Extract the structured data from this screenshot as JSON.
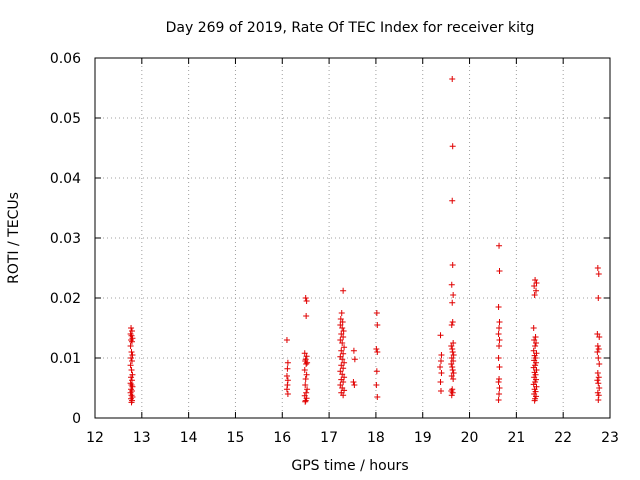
{
  "chart_data": {
    "type": "scatter",
    "title": "Day 269 of 2019, Rate Of TEC Index for receiver kitg",
    "xlabel": "GPS time / hours",
    "ylabel": "ROTI / TECUs",
    "xlim": [
      12,
      23
    ],
    "ylim": [
      0,
      0.06
    ],
    "xticks": [
      "12",
      "13",
      "14",
      "15",
      "16",
      "17",
      "18",
      "19",
      "20",
      "21",
      "22",
      "23"
    ],
    "yticks": [
      "0",
      "0.01",
      "0.02",
      "0.03",
      "0.04",
      "0.05",
      "0.06"
    ],
    "xtick_values": [
      12,
      13,
      14,
      15,
      16,
      17,
      18,
      19,
      20,
      21,
      22,
      23
    ],
    "ytick_values": [
      0,
      0.01,
      0.02,
      0.03,
      0.04,
      0.05,
      0.06
    ],
    "grid": true,
    "marker": "plus",
    "color": "#e00000",
    "series": [
      {
        "name": "ROTI",
        "points": [
          [
            12.77,
            0.015
          ],
          [
            12.79,
            0.0145
          ],
          [
            12.76,
            0.014
          ],
          [
            12.78,
            0.0137
          ],
          [
            12.8,
            0.0133
          ],
          [
            12.77,
            0.013
          ],
          [
            12.79,
            0.0127
          ],
          [
            12.76,
            0.012
          ],
          [
            12.78,
            0.011
          ],
          [
            12.8,
            0.0105
          ],
          [
            12.77,
            0.01
          ],
          [
            12.79,
            0.0095
          ],
          [
            12.76,
            0.0088
          ],
          [
            12.78,
            0.008
          ],
          [
            12.8,
            0.0072
          ],
          [
            12.77,
            0.0068
          ],
          [
            12.79,
            0.0063
          ],
          [
            12.76,
            0.0058
          ],
          [
            12.78,
            0.0055
          ],
          [
            12.8,
            0.0052
          ],
          [
            12.77,
            0.0048
          ],
          [
            12.79,
            0.0045
          ],
          [
            12.76,
            0.0042
          ],
          [
            12.78,
            0.0038
          ],
          [
            12.8,
            0.0035
          ],
          [
            12.77,
            0.0032
          ],
          [
            12.79,
            0.0029
          ],
          [
            12.78,
            0.0026
          ],
          [
            16.1,
            0.013
          ],
          [
            16.12,
            0.0092
          ],
          [
            16.11,
            0.0082
          ],
          [
            16.1,
            0.007
          ],
          [
            16.12,
            0.0063
          ],
          [
            16.11,
            0.0055
          ],
          [
            16.1,
            0.0048
          ],
          [
            16.12,
            0.004
          ],
          [
            16.5,
            0.02
          ],
          [
            16.52,
            0.0195
          ],
          [
            16.51,
            0.017
          ],
          [
            16.48,
            0.0108
          ],
          [
            16.52,
            0.0103
          ],
          [
            16.5,
            0.0098
          ],
          [
            16.49,
            0.0095
          ],
          [
            16.53,
            0.0092
          ],
          [
            16.51,
            0.009
          ],
          [
            16.48,
            0.008
          ],
          [
            16.52,
            0.0072
          ],
          [
            16.5,
            0.0065
          ],
          [
            16.49,
            0.0055
          ],
          [
            16.53,
            0.0048
          ],
          [
            16.51,
            0.0042
          ],
          [
            16.48,
            0.0037
          ],
          [
            16.52,
            0.0033
          ],
          [
            16.5,
            0.0029
          ],
          [
            16.49,
            0.0027
          ],
          [
            17.3,
            0.0212
          ],
          [
            17.27,
            0.0175
          ],
          [
            17.25,
            0.0165
          ],
          [
            17.29,
            0.016
          ],
          [
            17.24,
            0.0155
          ],
          [
            17.28,
            0.015
          ],
          [
            17.31,
            0.0145
          ],
          [
            17.26,
            0.014
          ],
          [
            17.3,
            0.0135
          ],
          [
            17.24,
            0.013
          ],
          [
            17.28,
            0.0125
          ],
          [
            17.32,
            0.0118
          ],
          [
            17.26,
            0.0112
          ],
          [
            17.3,
            0.0107
          ],
          [
            17.24,
            0.0102
          ],
          [
            17.28,
            0.0098
          ],
          [
            17.32,
            0.0092
          ],
          [
            17.26,
            0.0088
          ],
          [
            17.3,
            0.0083
          ],
          [
            17.24,
            0.0078
          ],
          [
            17.28,
            0.0073
          ],
          [
            17.32,
            0.0068
          ],
          [
            17.26,
            0.0064
          ],
          [
            17.3,
            0.006
          ],
          [
            17.24,
            0.0055
          ],
          [
            17.28,
            0.005
          ],
          [
            17.32,
            0.0046
          ],
          [
            17.26,
            0.0042
          ],
          [
            17.3,
            0.0038
          ],
          [
            17.53,
            0.0112
          ],
          [
            17.55,
            0.0098
          ],
          [
            17.52,
            0.006
          ],
          [
            17.54,
            0.0055
          ],
          [
            18.02,
            0.0175
          ],
          [
            18.03,
            0.0155
          ],
          [
            18.01,
            0.0115
          ],
          [
            18.03,
            0.011
          ],
          [
            18.02,
            0.0078
          ],
          [
            18.01,
            0.0055
          ],
          [
            18.03,
            0.0035
          ],
          [
            19.38,
            0.0138
          ],
          [
            19.4,
            0.0105
          ],
          [
            19.39,
            0.0095
          ],
          [
            19.37,
            0.0085
          ],
          [
            19.4,
            0.0075
          ],
          [
            19.38,
            0.006
          ],
          [
            19.39,
            0.0045
          ],
          [
            19.63,
            0.0565
          ],
          [
            19.64,
            0.0453
          ],
          [
            19.63,
            0.0362
          ],
          [
            19.64,
            0.0255
          ],
          [
            19.62,
            0.0222
          ],
          [
            19.65,
            0.0205
          ],
          [
            19.63,
            0.0192
          ],
          [
            19.64,
            0.016
          ],
          [
            19.62,
            0.0155
          ],
          [
            19.65,
            0.0125
          ],
          [
            19.61,
            0.012
          ],
          [
            19.63,
            0.0115
          ],
          [
            19.64,
            0.011
          ],
          [
            19.66,
            0.0105
          ],
          [
            19.62,
            0.01
          ],
          [
            19.65,
            0.0095
          ],
          [
            19.61,
            0.009
          ],
          [
            19.63,
            0.0085
          ],
          [
            19.64,
            0.008
          ],
          [
            19.66,
            0.0075
          ],
          [
            19.62,
            0.007
          ],
          [
            19.65,
            0.0065
          ],
          [
            19.63,
            0.0048
          ],
          [
            19.61,
            0.0045
          ],
          [
            19.64,
            0.0042
          ],
          [
            19.62,
            0.0038
          ],
          [
            20.63,
            0.0287
          ],
          [
            20.64,
            0.0245
          ],
          [
            20.62,
            0.0185
          ],
          [
            20.64,
            0.016
          ],
          [
            20.63,
            0.015
          ],
          [
            20.62,
            0.014
          ],
          [
            20.64,
            0.013
          ],
          [
            20.63,
            0.012
          ],
          [
            20.62,
            0.01
          ],
          [
            20.64,
            0.0085
          ],
          [
            20.63,
            0.0065
          ],
          [
            20.62,
            0.006
          ],
          [
            20.64,
            0.005
          ],
          [
            20.63,
            0.004
          ],
          [
            20.62,
            0.003
          ],
          [
            21.4,
            0.023
          ],
          [
            21.43,
            0.0225
          ],
          [
            21.38,
            0.022
          ],
          [
            21.42,
            0.0212
          ],
          [
            21.39,
            0.0205
          ],
          [
            21.37,
            0.015
          ],
          [
            21.41,
            0.0135
          ],
          [
            21.38,
            0.013
          ],
          [
            21.42,
            0.0125
          ],
          [
            21.4,
            0.012
          ],
          [
            21.37,
            0.0112
          ],
          [
            21.43,
            0.0108
          ],
          [
            21.39,
            0.0104
          ],
          [
            21.41,
            0.01
          ],
          [
            21.38,
            0.0096
          ],
          [
            21.42,
            0.0092
          ],
          [
            21.4,
            0.0088
          ],
          [
            21.37,
            0.0084
          ],
          [
            21.43,
            0.008
          ],
          [
            21.39,
            0.0076
          ],
          [
            21.41,
            0.0072
          ],
          [
            21.38,
            0.0068
          ],
          [
            21.42,
            0.0064
          ],
          [
            21.4,
            0.006
          ],
          [
            21.37,
            0.0056
          ],
          [
            21.43,
            0.0052
          ],
          [
            21.39,
            0.0048
          ],
          [
            21.41,
            0.0044
          ],
          [
            21.38,
            0.004
          ],
          [
            21.42,
            0.0036
          ],
          [
            21.4,
            0.0032
          ],
          [
            21.39,
            0.0029
          ],
          [
            22.74,
            0.025
          ],
          [
            22.76,
            0.024
          ],
          [
            22.75,
            0.02
          ],
          [
            22.73,
            0.014
          ],
          [
            22.77,
            0.0135
          ],
          [
            22.74,
            0.012
          ],
          [
            22.76,
            0.0115
          ],
          [
            22.73,
            0.011
          ],
          [
            22.75,
            0.01
          ],
          [
            22.77,
            0.009
          ],
          [
            22.74,
            0.0075
          ],
          [
            22.76,
            0.0068
          ],
          [
            22.73,
            0.0063
          ],
          [
            22.75,
            0.0058
          ],
          [
            22.77,
            0.005
          ],
          [
            22.74,
            0.0042
          ],
          [
            22.76,
            0.0038
          ],
          [
            22.75,
            0.003
          ]
        ]
      }
    ]
  }
}
